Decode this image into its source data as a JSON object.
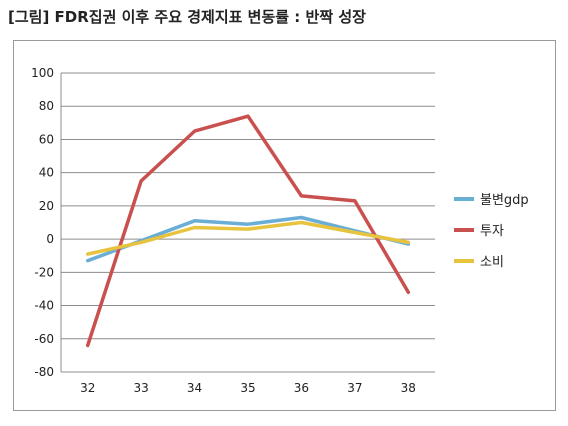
{
  "page_title": "[그림] FDR집권 이후 주요 경제지표 변동률 : 반짝 성장",
  "chart_data": {
    "type": "line",
    "categories": [
      "32",
      "33",
      "34",
      "35",
      "36",
      "37",
      "38"
    ],
    "series": [
      {
        "name": "불변gdp",
        "color": "#6aaed6",
        "values": [
          -13,
          -1,
          11,
          9,
          13,
          5,
          -3
        ]
      },
      {
        "name": "투자",
        "color": "#c9504f",
        "values": [
          -64,
          35,
          65,
          74,
          26,
          23,
          -32
        ]
      },
      {
        "name": "소비",
        "color": "#e8c33e",
        "values": [
          -9,
          -2,
          7,
          6,
          10,
          4,
          -2
        ]
      }
    ],
    "yticks": [
      "100",
      "80",
      "60",
      "40",
      "20",
      "0",
      "-20",
      "-40",
      "-60",
      "-80"
    ],
    "ylim": [
      -80,
      100
    ],
    "grid": true,
    "legend_position": "right"
  }
}
